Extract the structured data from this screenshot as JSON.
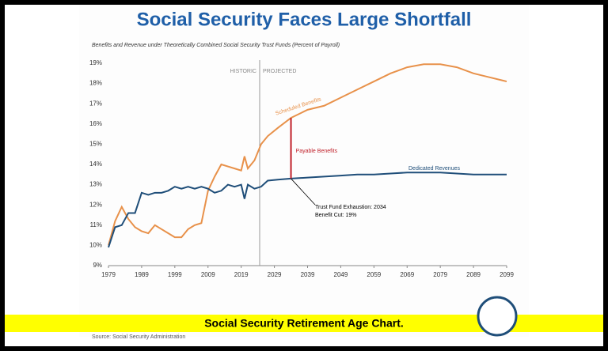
{
  "chart_data": {
    "type": "line",
    "title": "Social Security Faces Large Shortfall",
    "subtitle": "Benefits and Revenue under Theoretically Combined Social Security Trust Funds (Percent of Payroll)",
    "section_labels": [
      "HISTORIC",
      "PROJECTED"
    ],
    "annotations": [
      {
        "text": "Payable Benefits",
        "x": 2034
      },
      {
        "text": "Trust Fund Exhaustion: 2034"
      },
      {
        "text": "Benefit Cut: 19%"
      }
    ],
    "x": [
      1979,
      1981,
      1983,
      1985,
      1987,
      1989,
      1991,
      1993,
      1995,
      1997,
      1999,
      2001,
      2003,
      2005,
      2007,
      2009,
      2011,
      2013,
      2015,
      2017,
      2019,
      2020,
      2021,
      2023,
      2025,
      2027,
      2030,
      2034,
      2039,
      2044,
      2049,
      2054,
      2059,
      2064,
      2069,
      2074,
      2079,
      2084,
      2089,
      2094,
      2099
    ],
    "series": [
      {
        "name": "Scheduled Benefits",
        "color": "#e8914a",
        "values": [
          10.0,
          11.2,
          11.9,
          11.3,
          10.9,
          10.7,
          10.6,
          11.0,
          10.8,
          10.6,
          10.4,
          10.4,
          10.8,
          11.0,
          11.1,
          12.7,
          13.4,
          14.0,
          13.9,
          13.8,
          13.7,
          14.4,
          13.8,
          14.2,
          15.0,
          15.4,
          15.8,
          16.3,
          16.7,
          16.9,
          17.3,
          17.7,
          18.1,
          18.5,
          18.8,
          18.95,
          18.95,
          18.8,
          18.5,
          18.3,
          18.1
        ]
      },
      {
        "name": "Dedicated Revenues",
        "color": "#1f4e79",
        "values": [
          9.9,
          10.9,
          11.0,
          11.6,
          11.6,
          12.6,
          12.5,
          12.6,
          12.6,
          12.7,
          12.9,
          12.8,
          12.9,
          12.8,
          12.9,
          12.8,
          12.6,
          12.7,
          13.0,
          12.9,
          13.0,
          12.3,
          13.0,
          12.8,
          12.9,
          13.2,
          13.25,
          13.3,
          13.35,
          13.4,
          13.45,
          13.5,
          13.5,
          13.55,
          13.6,
          13.6,
          13.6,
          13.55,
          13.5,
          13.5,
          13.5
        ]
      }
    ],
    "xlim": [
      1979,
      2099
    ],
    "xticks": [
      1979,
      1989,
      1999,
      2009,
      2019,
      2029,
      2039,
      2049,
      2059,
      2069,
      2079,
      2089,
      2099
    ],
    "ylim": [
      9,
      19
    ],
    "yticks": [
      {
        "value": 9,
        "label": "9%"
      },
      {
        "value": 10,
        "label": "10%"
      },
      {
        "value": 11,
        "label": "11%"
      },
      {
        "value": 12,
        "label": "12%"
      },
      {
        "value": 13,
        "label": "13%"
      },
      {
        "value": 14,
        "label": "14%"
      },
      {
        "value": 15,
        "label": "15%"
      },
      {
        "value": 16,
        "label": "16%"
      },
      {
        "value": 17,
        "label": "17%"
      },
      {
        "value": 18,
        "label": "18%"
      },
      {
        "value": 19,
        "label": "19%"
      }
    ],
    "grid": false,
    "caption": "Social Security Retirement Age Chart.",
    "source": "Source: Social Security Administration"
  }
}
